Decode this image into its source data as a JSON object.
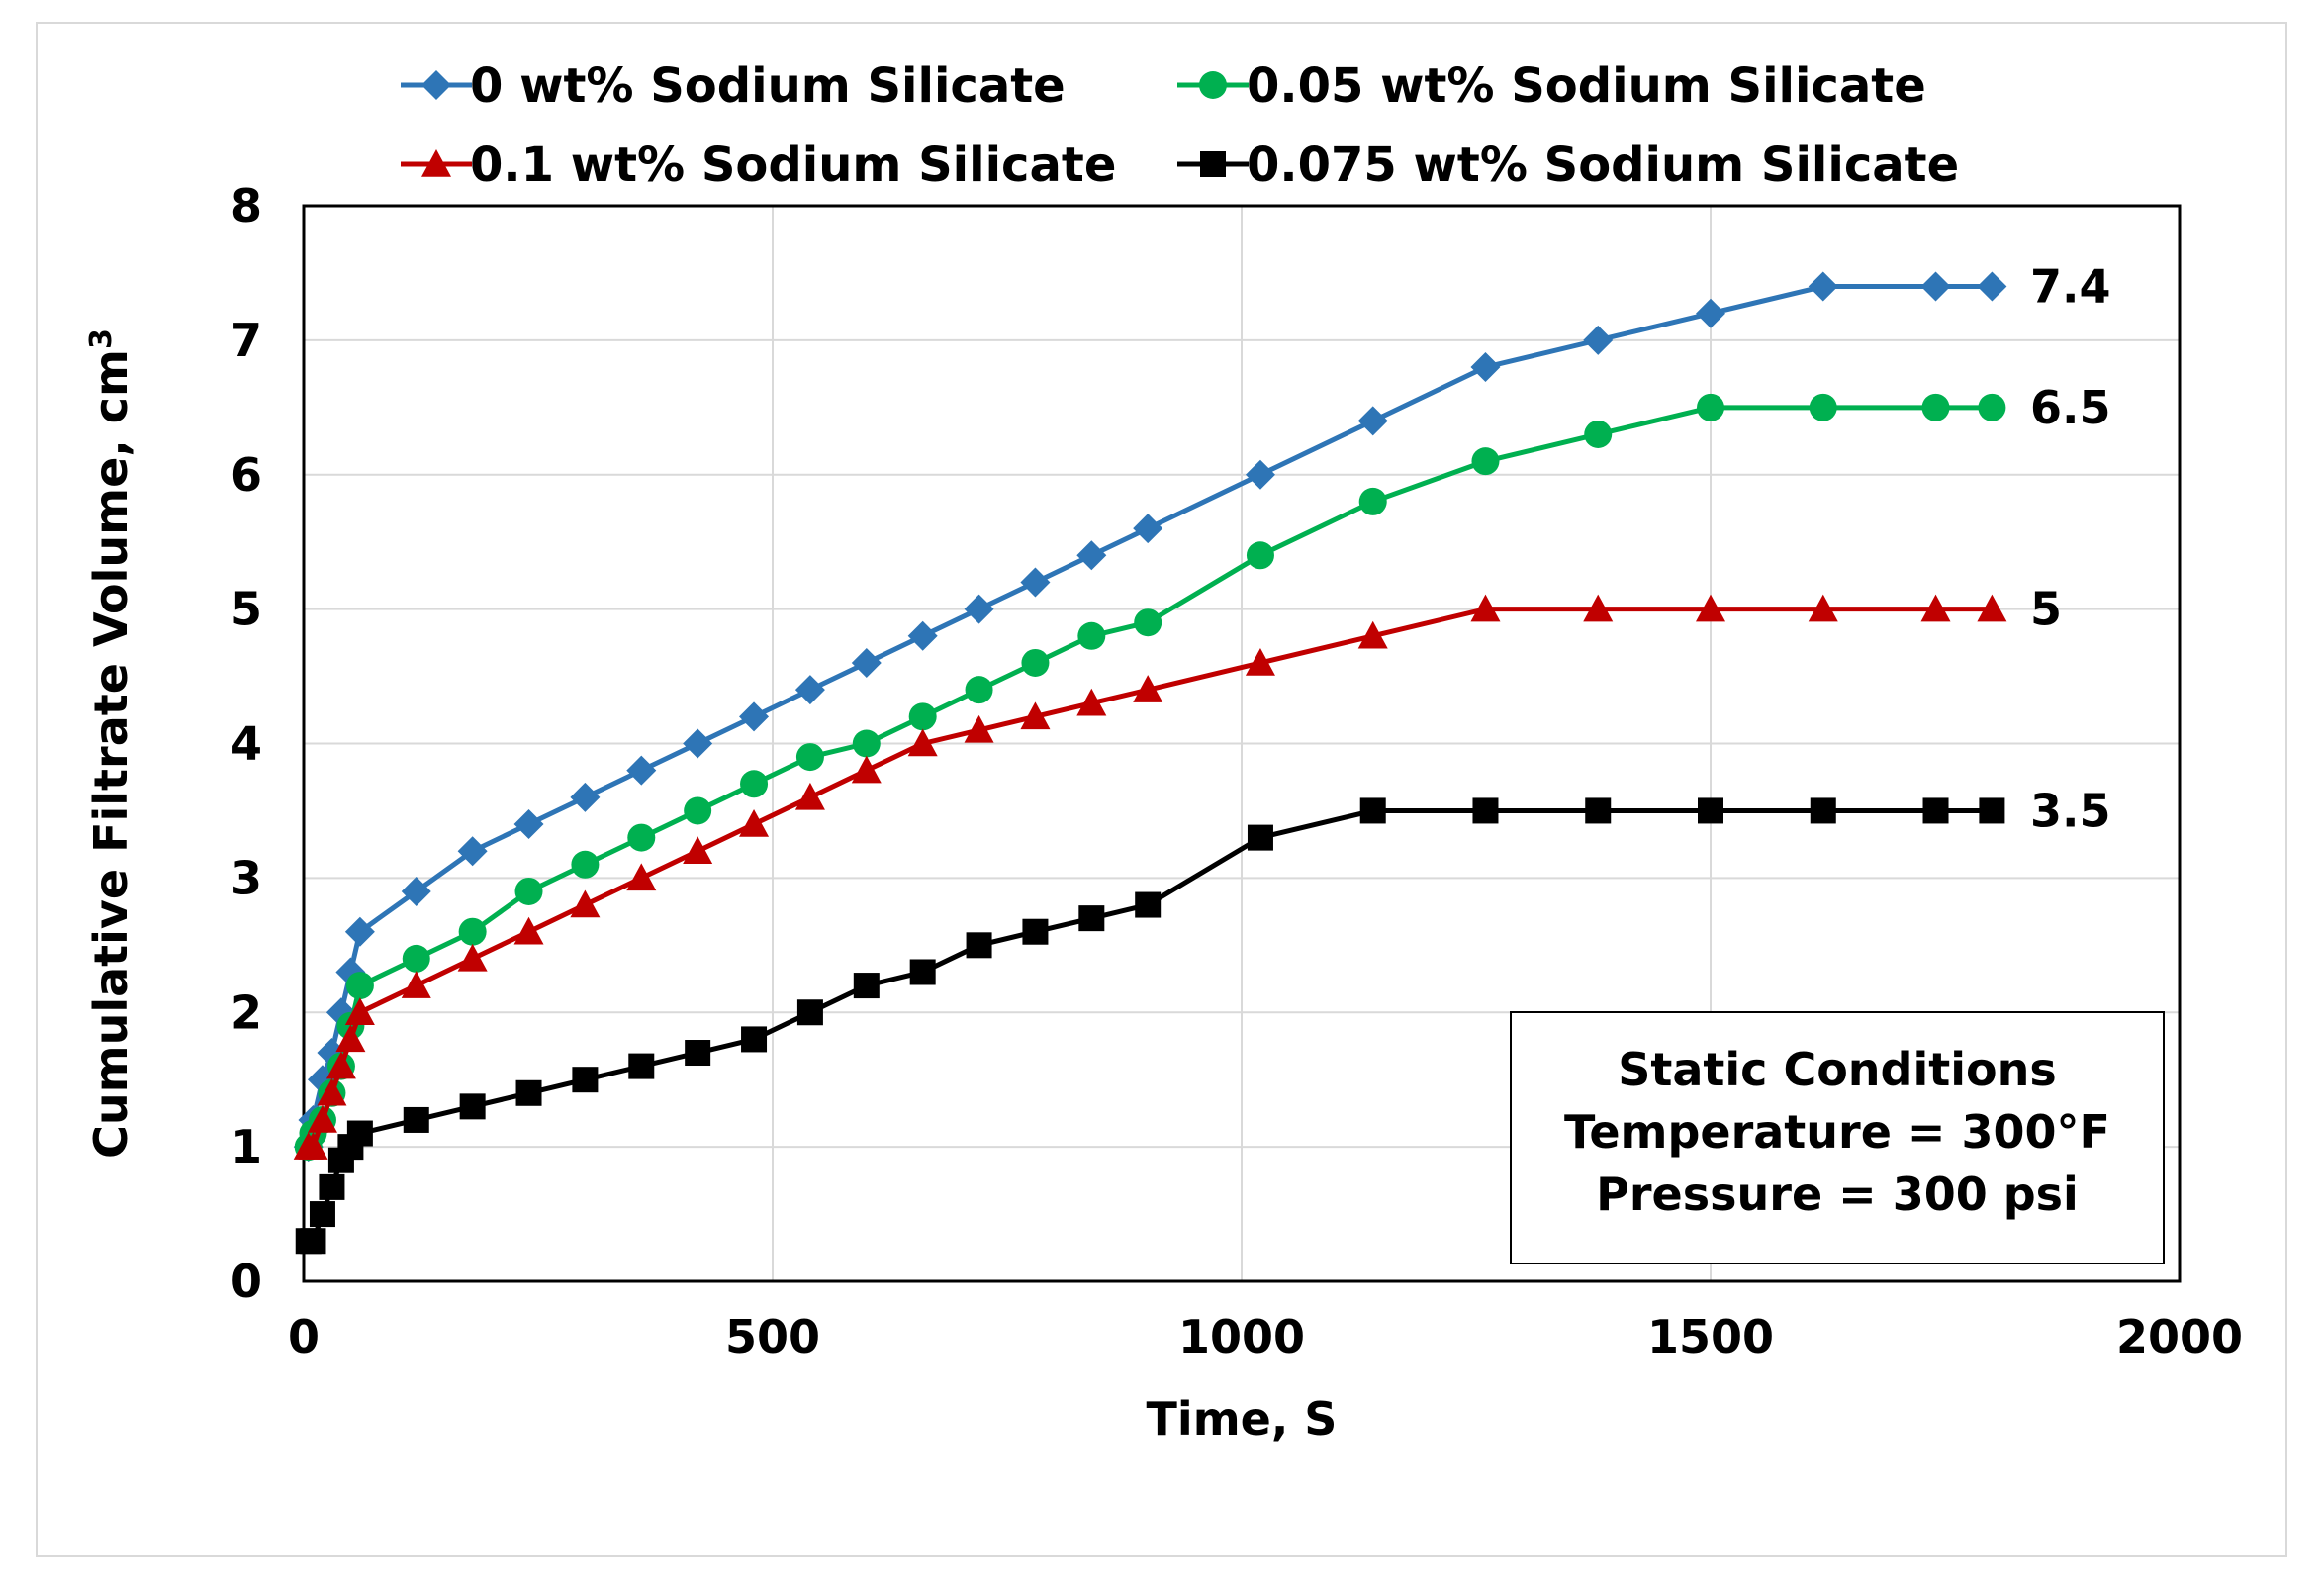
{
  "chart_data": {
    "type": "line",
    "title": "",
    "xlabel": "Time, S",
    "ylabel": "Cumulative Filtrate Volume, cm",
    "ylabel_superscript": "3",
    "xlim": [
      0,
      2000
    ],
    "ylim": [
      0,
      8
    ],
    "xticks": [
      0,
      500,
      1000,
      1500,
      2000
    ],
    "yticks": [
      0,
      1,
      2,
      3,
      4,
      5,
      6,
      7,
      8
    ],
    "grid": true,
    "legend_position": "top",
    "series": [
      {
        "name": "0 wt% Sodium Silicate",
        "color": "#2e75b6",
        "marker": "diamond",
        "end_label": "7.4",
        "x": [
          5,
          10,
          20,
          30,
          40,
          50,
          60,
          120,
          180,
          240,
          300,
          360,
          420,
          480,
          540,
          600,
          660,
          720,
          780,
          840,
          900,
          1020,
          1140,
          1260,
          1380,
          1500,
          1620,
          1740,
          1800
        ],
        "y": [
          1.0,
          1.2,
          1.5,
          1.7,
          2.0,
          2.3,
          2.6,
          2.9,
          3.2,
          3.4,
          3.6,
          3.8,
          4.0,
          4.2,
          4.4,
          4.6,
          4.8,
          5.0,
          5.2,
          5.4,
          5.6,
          6.0,
          6.4,
          6.8,
          7.0,
          7.2,
          7.4,
          7.4,
          7.4
        ]
      },
      {
        "name": "0.05 wt% Sodium Silicate",
        "color": "#00b050",
        "marker": "circle",
        "end_label": "6.5",
        "x": [
          5,
          10,
          20,
          30,
          40,
          50,
          60,
          120,
          180,
          240,
          300,
          360,
          420,
          480,
          540,
          600,
          660,
          720,
          780,
          840,
          900,
          1020,
          1140,
          1260,
          1380,
          1500,
          1620,
          1740,
          1800
        ],
        "y": [
          1.0,
          1.1,
          1.2,
          1.4,
          1.6,
          1.9,
          2.2,
          2.4,
          2.6,
          2.9,
          3.1,
          3.3,
          3.5,
          3.7,
          3.9,
          4.0,
          4.2,
          4.4,
          4.6,
          4.8,
          4.9,
          5.4,
          5.8,
          6.1,
          6.3,
          6.5,
          6.5,
          6.5,
          6.5
        ]
      },
      {
        "name": "0.1 wt% Sodium Silicate",
        "color": "#c00000",
        "marker": "triangle",
        "end_label": "5",
        "x": [
          5,
          10,
          20,
          30,
          40,
          50,
          60,
          120,
          180,
          240,
          300,
          360,
          420,
          480,
          540,
          600,
          660,
          720,
          780,
          840,
          900,
          1020,
          1140,
          1260,
          1380,
          1500,
          1620,
          1740,
          1800
        ],
        "y": [
          1.0,
          1.0,
          1.2,
          1.4,
          1.6,
          1.8,
          2.0,
          2.2,
          2.4,
          2.6,
          2.8,
          3.0,
          3.2,
          3.4,
          3.6,
          3.8,
          4.0,
          4.1,
          4.2,
          4.3,
          4.4,
          4.6,
          4.8,
          5.0,
          5.0,
          5.0,
          5.0,
          5.0,
          5.0
        ]
      },
      {
        "name": "0.075 wt% Sodium Silicate",
        "color": "#000000",
        "marker": "square",
        "end_label": "3.5",
        "x": [
          5,
          10,
          20,
          30,
          40,
          50,
          60,
          120,
          180,
          240,
          300,
          360,
          420,
          480,
          540,
          600,
          660,
          720,
          780,
          840,
          900,
          1020,
          1140,
          1260,
          1380,
          1500,
          1620,
          1740,
          1800
        ],
        "y": [
          0.3,
          0.3,
          0.5,
          0.7,
          0.9,
          1.0,
          1.1,
          1.2,
          1.3,
          1.4,
          1.5,
          1.6,
          1.7,
          1.8,
          2.0,
          2.2,
          2.3,
          2.5,
          2.6,
          2.7,
          2.8,
          3.3,
          3.5,
          3.5,
          3.5,
          3.5,
          3.5,
          3.5,
          3.5
        ]
      }
    ],
    "annotation": {
      "lines": [
        "Static Conditions",
        "Temperature = 300°F",
        "Pressure = 300 psi"
      ]
    }
  }
}
